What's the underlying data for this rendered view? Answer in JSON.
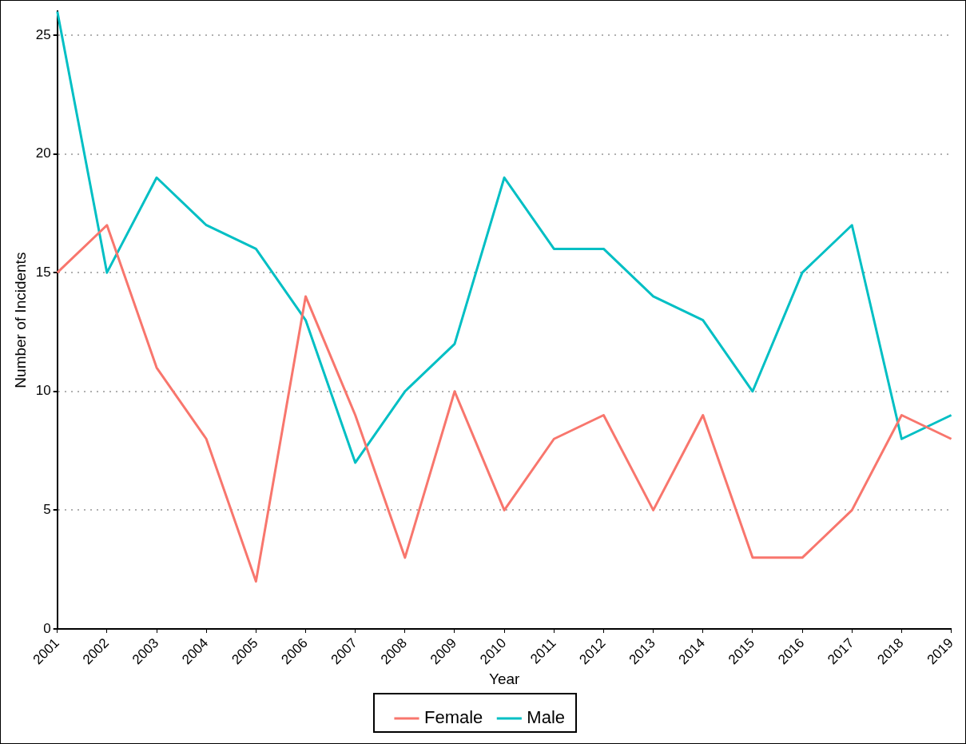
{
  "chart_data": {
    "type": "line",
    "xlabel": "Year",
    "ylabel": "Number of Incidents",
    "categories": [
      "2001",
      "2002",
      "2003",
      "2004",
      "2005",
      "2006",
      "2007",
      "2008",
      "2009",
      "2010",
      "2011",
      "2012",
      "2013",
      "2014",
      "2015",
      "2016",
      "2017",
      "2018",
      "2019"
    ],
    "series": [
      {
        "name": "Female",
        "color": "#f8766d",
        "values": [
          15,
          17,
          11,
          8,
          2,
          14,
          9,
          3,
          10,
          5,
          8,
          9,
          5,
          9,
          3,
          3,
          5,
          9,
          8
        ]
      },
      {
        "name": "Male",
        "color": "#00bfc4",
        "values": [
          26,
          15,
          19,
          17,
          16,
          13,
          7,
          10,
          12,
          19,
          16,
          16,
          14,
          13,
          10,
          15,
          17,
          8,
          9
        ]
      }
    ],
    "ylim": [
      0,
      26
    ],
    "yticks": [
      0,
      5,
      10,
      15,
      20,
      25
    ],
    "grid": "y",
    "legend": "bottom",
    "marker": "none",
    "line_style": "solid"
  }
}
